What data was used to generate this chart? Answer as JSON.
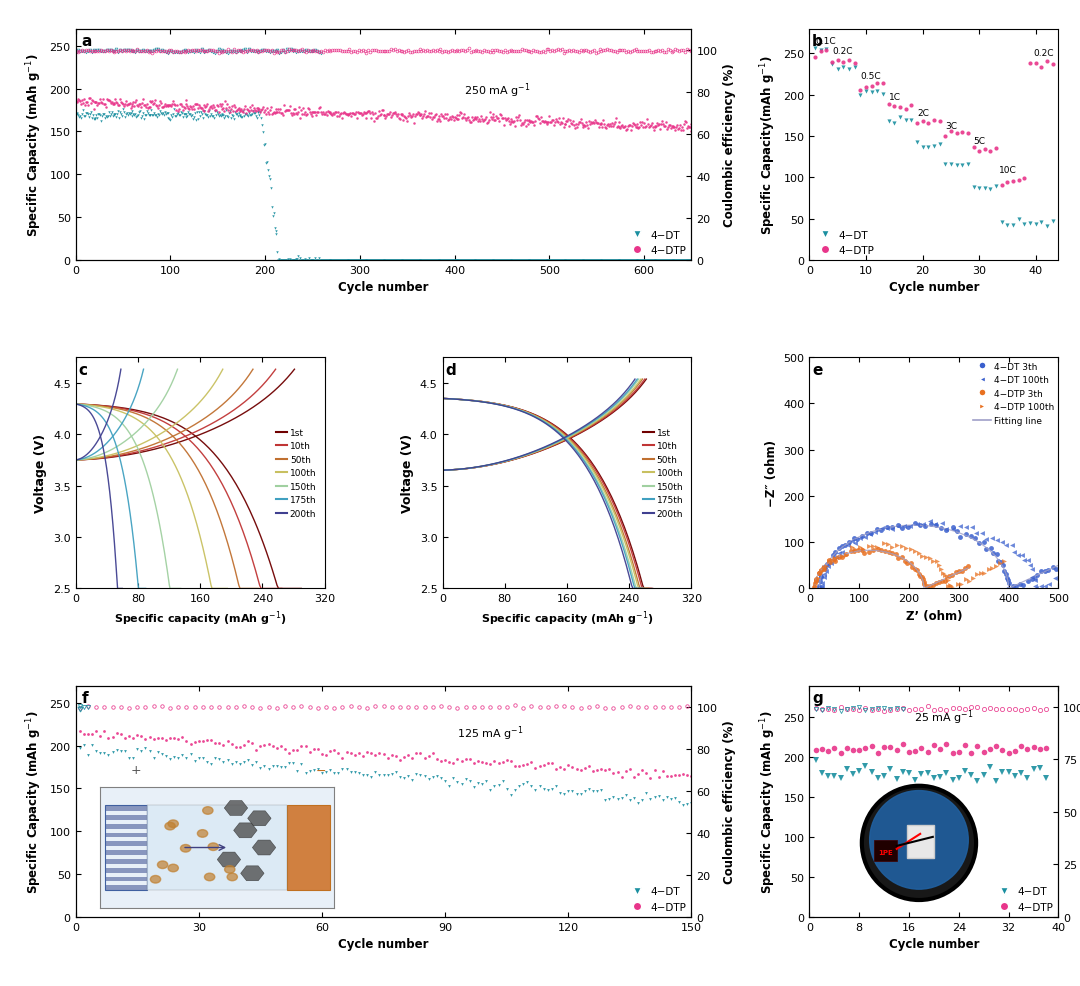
{
  "colors": {
    "teal": "#1a8fa0",
    "pink": "#e8358a",
    "blue_eis": "#3a5fcd",
    "orange_eis": "#e87020"
  },
  "cycle_colors": {
    "1st": "#700000",
    "10th": "#c03535",
    "50th": "#c07030",
    "100th": "#c8c060",
    "150th": "#a0d0a0",
    "175th": "#40a0c0",
    "200th": "#404090"
  },
  "legend_labels": [
    "1st",
    "10th",
    "50th",
    "100th",
    "150th",
    "175th",
    "200th"
  ]
}
